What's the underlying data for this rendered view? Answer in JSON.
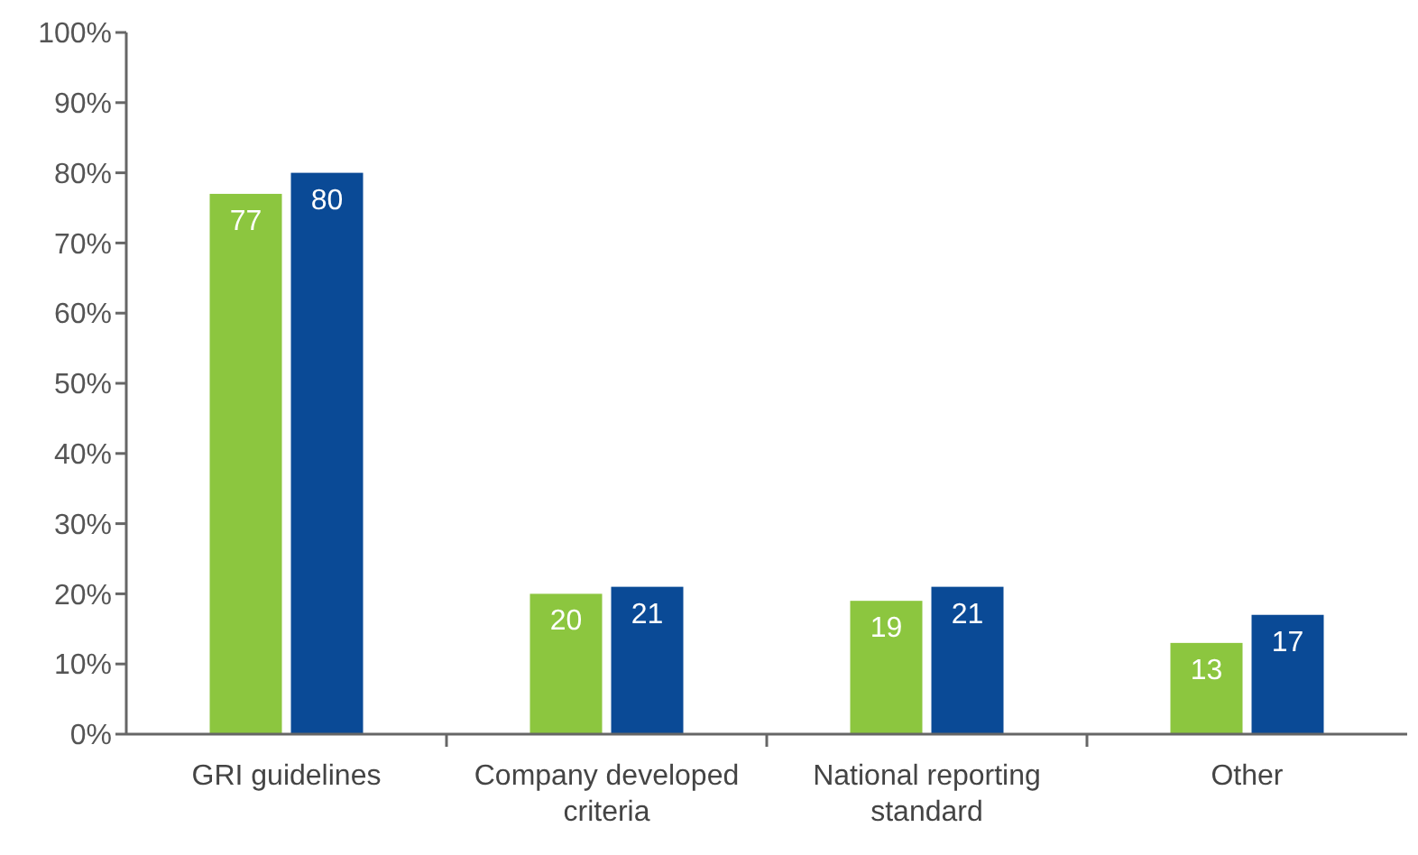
{
  "chart_data": {
    "type": "bar",
    "categories": [
      "GRI guidelines",
      "Company developed criteria",
      "National reporting standard",
      "Other"
    ],
    "series": [
      {
        "color": "#8cc63f",
        "values": [
          77,
          20,
          19,
          13
        ]
      },
      {
        "color": "#0a4a96",
        "values": [
          80,
          21,
          21,
          17
        ]
      }
    ],
    "ylim": [
      0,
      100
    ],
    "yticks": [
      {
        "value": 0,
        "label": "0%"
      },
      {
        "value": 10,
        "label": "10%"
      },
      {
        "value": 20,
        "label": "20%"
      },
      {
        "value": 30,
        "label": "30%"
      },
      {
        "value": 40,
        "label": "40%"
      },
      {
        "value": 50,
        "label": "50%"
      },
      {
        "value": 60,
        "label": "60%"
      },
      {
        "value": 70,
        "label": "70%"
      },
      {
        "value": 80,
        "label": "80%"
      },
      {
        "value": 90,
        "label": "90%"
      },
      {
        "value": 100,
        "label": "100%"
      }
    ],
    "data_labels": true
  }
}
